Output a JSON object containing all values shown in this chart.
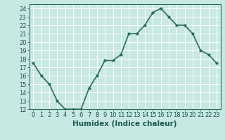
{
  "x": [
    0,
    1,
    2,
    3,
    4,
    5,
    6,
    7,
    8,
    9,
    10,
    11,
    12,
    13,
    14,
    15,
    16,
    17,
    18,
    19,
    20,
    21,
    22,
    23
  ],
  "y": [
    17.5,
    16.0,
    15.0,
    13.0,
    12.0,
    12.0,
    12.0,
    14.5,
    16.0,
    17.8,
    17.8,
    18.5,
    21.0,
    21.0,
    22.0,
    23.5,
    24.0,
    23.0,
    22.0,
    22.0,
    21.0,
    19.0,
    18.5,
    17.5
  ],
  "line_color": "#2e6b5e",
  "marker": "o",
  "marker_size": 2.0,
  "line_width": 1.2,
  "xlabel": "Humidex (Indice chaleur)",
  "xlim": [
    -0.5,
    23.5
  ],
  "ylim": [
    12,
    24.5
  ],
  "yticks": [
    12,
    13,
    14,
    15,
    16,
    17,
    18,
    19,
    20,
    21,
    22,
    23,
    24
  ],
  "xticks": [
    0,
    1,
    2,
    3,
    4,
    5,
    6,
    7,
    8,
    9,
    10,
    11,
    12,
    13,
    14,
    15,
    16,
    17,
    18,
    19,
    20,
    21,
    22,
    23
  ],
  "xtick_labels": [
    "0",
    "1",
    "2",
    "3",
    "4",
    "5",
    "6",
    "7",
    "8",
    "9",
    "10",
    "11",
    "12",
    "13",
    "14",
    "15",
    "16",
    "17",
    "18",
    "19",
    "20",
    "21",
    "22",
    "23"
  ],
  "bg_color": "#c8e8e4",
  "grid_color": "#ffffff",
  "xlabel_fontsize": 7.5,
  "tick_fontsize": 6.0,
  "xlabel_color": "#1a5a50"
}
